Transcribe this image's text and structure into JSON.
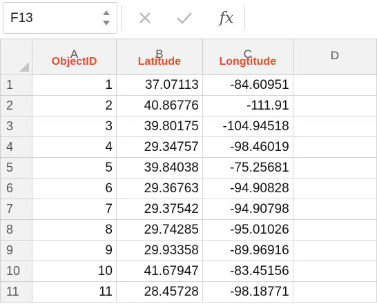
{
  "formula_bar": {
    "name_box": "F13",
    "fx_label": "fx",
    "formula": ""
  },
  "columns": [
    {
      "letter": "A",
      "field": "ObjectID"
    },
    {
      "letter": "B",
      "field": "Latitude"
    },
    {
      "letter": "C",
      "field": "Longtitude"
    },
    {
      "letter": "D",
      "field": ""
    }
  ],
  "rows": [
    {
      "row": "1",
      "A": "1",
      "B": "37.07113",
      "C": "-84.60951",
      "D": ""
    },
    {
      "row": "2",
      "A": "2",
      "B": "40.86776",
      "C": "-111.91",
      "D": ""
    },
    {
      "row": "3",
      "A": "3",
      "B": "39.80175",
      "C": "-104.94518",
      "D": ""
    },
    {
      "row": "4",
      "A": "4",
      "B": "29.34757",
      "C": "-98.46019",
      "D": ""
    },
    {
      "row": "5",
      "A": "5",
      "B": "39.84038",
      "C": "-75.25681",
      "D": ""
    },
    {
      "row": "6",
      "A": "6",
      "B": "29.36763",
      "C": "-94.90828",
      "D": ""
    },
    {
      "row": "7",
      "A": "7",
      "B": "29.37542",
      "C": "-94.90798",
      "D": ""
    },
    {
      "row": "8",
      "A": "8",
      "B": "29.74285",
      "C": "-95.01026",
      "D": ""
    },
    {
      "row": "9",
      "A": "9",
      "B": "29.93358",
      "C": "-89.96916",
      "D": ""
    },
    {
      "row": "10",
      "A": "10",
      "B": "41.67947",
      "C": "-83.45156",
      "D": ""
    },
    {
      "row": "11",
      "A": "11",
      "B": "28.45728",
      "C": "-98.18771",
      "D": ""
    }
  ],
  "colors": {
    "header_field_text": "#ec4a2c",
    "header_bg": "#f2f2f2",
    "gridline": "#d6d6d6"
  }
}
